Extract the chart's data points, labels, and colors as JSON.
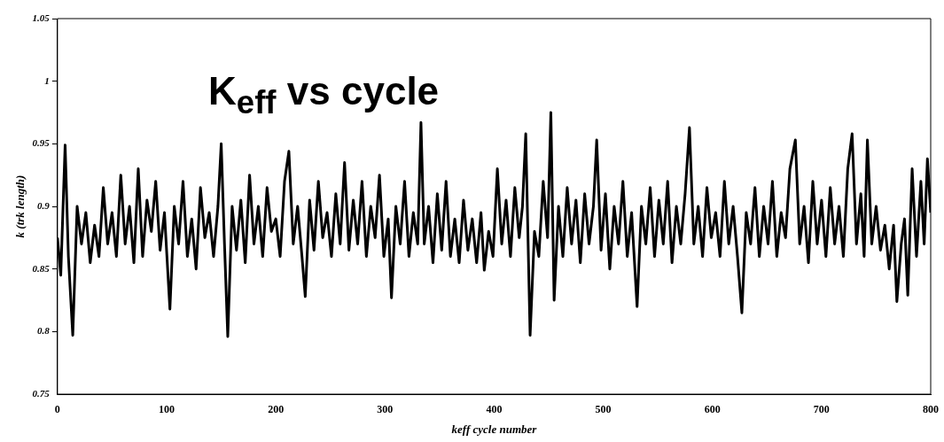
{
  "chart_data": {
    "type": "line",
    "title": "K$_{eff}$ vs cycle",
    "xlabel": "keff cycle number",
    "ylabel": "k (trk length)",
    "x": [
      0,
      3,
      7,
      10,
      14,
      18,
      22,
      26,
      30,
      34,
      38,
      42,
      46,
      50,
      54,
      58,
      62,
      66,
      70,
      74,
      78,
      82,
      86,
      90,
      94,
      98,
      103,
      107,
      111,
      115,
      119,
      123,
      127,
      131,
      135,
      139,
      143,
      147,
      150,
      153,
      156,
      160,
      164,
      168,
      172,
      176,
      180,
      184,
      188,
      192,
      196,
      200,
      204,
      208,
      212,
      216,
      220,
      224,
      227,
      231,
      235,
      239,
      243,
      247,
      251,
      255,
      259,
      263,
      267,
      271,
      275,
      279,
      283,
      287,
      291,
      295,
      299,
      303,
      306,
      310,
      314,
      318,
      322,
      326,
      330,
      333,
      336,
      340,
      344,
      348,
      352,
      356,
      360,
      364,
      368,
      372,
      376,
      380,
      384,
      388,
      391,
      395,
      399,
      403,
      407,
      411,
      415,
      419,
      423,
      426,
      429,
      433,
      437,
      441,
      445,
      449,
      452,
      455,
      459,
      463,
      467,
      471,
      475,
      479,
      483,
      487,
      491,
      494,
      498,
      502,
      506,
      510,
      514,
      518,
      522,
      526,
      531,
      535,
      539,
      543,
      547,
      551,
      555,
      559,
      563,
      567,
      571,
      575,
      579,
      583,
      587,
      591,
      595,
      599,
      603,
      607,
      611,
      615,
      619,
      623,
      627,
      631,
      635,
      639,
      643,
      647,
      651,
      655,
      659,
      663,
      667,
      671,
      676,
      680,
      684,
      688,
      692,
      696,
      700,
      704,
      708,
      712,
      716,
      720,
      724,
      728,
      732,
      736,
      739,
      742,
      746,
      750,
      754,
      758,
      762,
      766,
      769,
      773,
      776,
      779,
      783,
      787,
      791,
      794,
      797,
      800
    ],
    "values": [
      0.875,
      0.845,
      0.949,
      0.86,
      0.797,
      0.9,
      0.87,
      0.895,
      0.855,
      0.885,
      0.86,
      0.915,
      0.87,
      0.895,
      0.86,
      0.925,
      0.87,
      0.9,
      0.855,
      0.93,
      0.86,
      0.905,
      0.88,
      0.92,
      0.865,
      0.895,
      0.818,
      0.9,
      0.87,
      0.92,
      0.86,
      0.89,
      0.85,
      0.915,
      0.875,
      0.895,
      0.86,
      0.9,
      0.95,
      0.87,
      0.796,
      0.9,
      0.865,
      0.905,
      0.855,
      0.925,
      0.87,
      0.9,
      0.86,
      0.915,
      0.88,
      0.89,
      0.86,
      0.92,
      0.944,
      0.87,
      0.9,
      0.86,
      0.828,
      0.905,
      0.865,
      0.92,
      0.875,
      0.895,
      0.86,
      0.91,
      0.87,
      0.935,
      0.865,
      0.905,
      0.87,
      0.92,
      0.86,
      0.9,
      0.875,
      0.925,
      0.86,
      0.89,
      0.827,
      0.9,
      0.87,
      0.92,
      0.86,
      0.895,
      0.87,
      0.967,
      0.87,
      0.9,
      0.855,
      0.91,
      0.865,
      0.92,
      0.86,
      0.89,
      0.855,
      0.905,
      0.865,
      0.89,
      0.855,
      0.895,
      0.849,
      0.88,
      0.86,
      0.93,
      0.87,
      0.905,
      0.86,
      0.915,
      0.875,
      0.9,
      0.958,
      0.797,
      0.88,
      0.86,
      0.92,
      0.875,
      0.975,
      0.825,
      0.9,
      0.86,
      0.915,
      0.87,
      0.905,
      0.855,
      0.91,
      0.87,
      0.9,
      0.953,
      0.865,
      0.91,
      0.85,
      0.9,
      0.87,
      0.92,
      0.86,
      0.895,
      0.82,
      0.9,
      0.87,
      0.915,
      0.86,
      0.905,
      0.87,
      0.92,
      0.855,
      0.9,
      0.87,
      0.91,
      0.963,
      0.87,
      0.9,
      0.86,
      0.915,
      0.875,
      0.895,
      0.86,
      0.92,
      0.87,
      0.9,
      0.86,
      0.815,
      0.895,
      0.87,
      0.915,
      0.86,
      0.9,
      0.87,
      0.92,
      0.86,
      0.895,
      0.875,
      0.93,
      0.953,
      0.87,
      0.9,
      0.855,
      0.92,
      0.87,
      0.905,
      0.86,
      0.915,
      0.87,
      0.9,
      0.86,
      0.93,
      0.958,
      0.87,
      0.91,
      0.86,
      0.953,
      0.87,
      0.9,
      0.865,
      0.885,
      0.85,
      0.885,
      0.824,
      0.87,
      0.89,
      0.829,
      0.93,
      0.86,
      0.92,
      0.87,
      0.938,
      0.895
    ],
    "color": "#000000",
    "marker": "none",
    "line_style": "solid",
    "grid": false,
    "legend": false,
    "xlim": [
      0,
      800
    ],
    "xticks": [
      0,
      100,
      200,
      300,
      400,
      500,
      600,
      700,
      800
    ],
    "ylim": [
      0.75,
      1.05
    ],
    "yticks": [
      0.75,
      0.8,
      0.85,
      0.9,
      0.95,
      1,
      1.05
    ]
  }
}
